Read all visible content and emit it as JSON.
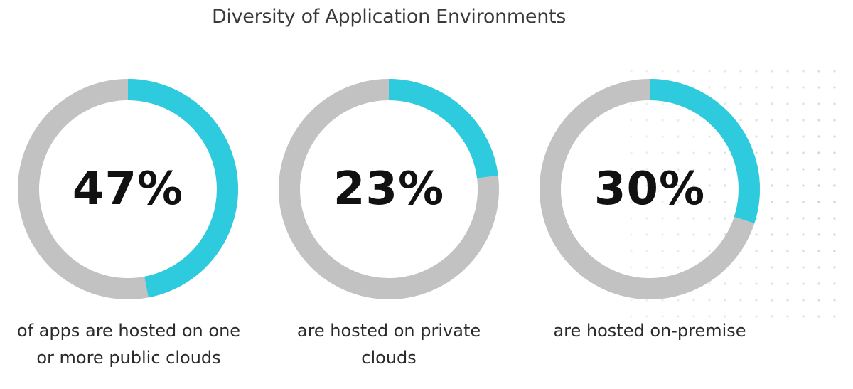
{
  "title": "Diversity of Application Environments",
  "colors": {
    "accent": "#2ecbdf",
    "track": "#c2c2c2",
    "text": "#111111",
    "dots": "#b8c4c8"
  },
  "chart_data": {
    "type": "pie",
    "title": "Diversity of Application Environments",
    "items": [
      {
        "value": 47,
        "label": "47%",
        "caption_line1": "of apps are hosted on one",
        "caption_line2": "or more public clouds"
      },
      {
        "value": 23,
        "label": "23%",
        "caption_line1": "are hosted on private",
        "caption_line2": "clouds"
      },
      {
        "value": 30,
        "label": "30%",
        "caption_line1": "are hosted on-premise",
        "caption_line2": ""
      }
    ]
  }
}
